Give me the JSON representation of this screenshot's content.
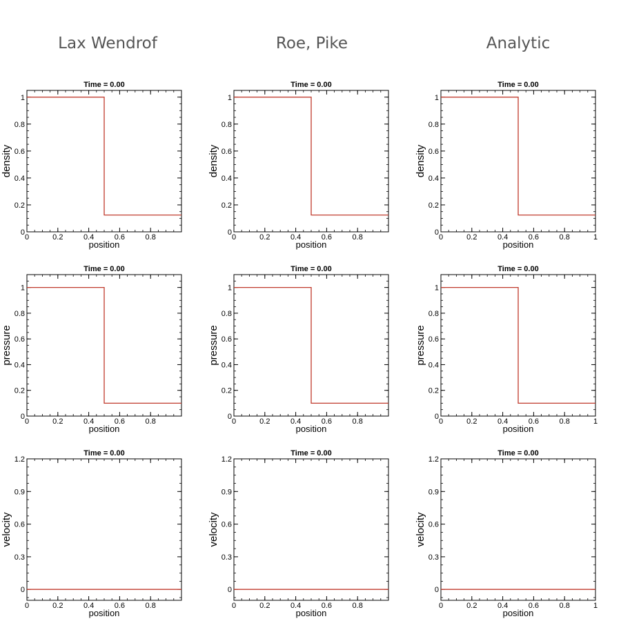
{
  "columns": [
    {
      "title": "Lax Wendrof"
    },
    {
      "title": "Roe, Pike"
    },
    {
      "title": "Analytic"
    }
  ],
  "colors": {
    "line": "#c0392b",
    "axis": "#000000",
    "column_title": "#555555"
  },
  "chart_data": [
    {
      "type": "line",
      "column": 0,
      "row": 0,
      "title": "Time = 0.00",
      "xlabel": "position",
      "ylabel": "density",
      "xlim": [
        0,
        1
      ],
      "ylim": [
        0,
        1.05
      ],
      "xticks": [
        0,
        0.2,
        0.4,
        0.6,
        0.8
      ],
      "xtick_labels": [
        "0",
        "0.2",
        "0.4",
        "0.6",
        "0.8"
      ],
      "yticks": [
        0,
        0.2,
        0.4,
        0.6,
        0.8,
        1
      ],
      "ytick_labels": [
        "0",
        "0.2",
        "0.4",
        "0.6",
        "0.8",
        "1"
      ],
      "series": [
        {
          "x": [
            0,
            0.5,
            0.5,
            1
          ],
          "y": [
            1,
            1,
            0.125,
            0.125
          ]
        }
      ]
    },
    {
      "type": "line",
      "column": 1,
      "row": 0,
      "title": "Time = 0.00",
      "xlabel": "position",
      "ylabel": "density",
      "xlim": [
        0,
        1
      ],
      "ylim": [
        0,
        1.05
      ],
      "xticks": [
        0,
        0.2,
        0.4,
        0.6,
        0.8
      ],
      "xtick_labels": [
        "0",
        "0.2",
        "0.4",
        "0.6",
        "0.8"
      ],
      "yticks": [
        0,
        0.2,
        0.4,
        0.6,
        0.8,
        1
      ],
      "ytick_labels": [
        "0",
        "0.2",
        "0.4",
        "0.6",
        "0.8",
        "1"
      ],
      "series": [
        {
          "x": [
            0,
            0.5,
            0.5,
            1
          ],
          "y": [
            1,
            1,
            0.125,
            0.125
          ]
        }
      ]
    },
    {
      "type": "line",
      "column": 2,
      "row": 0,
      "title": "Time = 0.00",
      "xlabel": "position",
      "ylabel": "density",
      "xlim": [
        0,
        1
      ],
      "ylim": [
        0,
        1.05
      ],
      "xticks": [
        0,
        0.2,
        0.4,
        0.6,
        0.8,
        1
      ],
      "xtick_labels": [
        "0",
        "0.2",
        "0.4",
        "0.6",
        "0.8",
        "1"
      ],
      "yticks": [
        0,
        0.2,
        0.4,
        0.6,
        0.8,
        1
      ],
      "ytick_labels": [
        "0",
        "0.2",
        "0.4",
        "0.6",
        "0.8",
        "1"
      ],
      "series": [
        {
          "x": [
            0,
            0.5,
            0.5,
            1
          ],
          "y": [
            1,
            1,
            0.125,
            0.125
          ]
        }
      ]
    },
    {
      "type": "line",
      "column": 0,
      "row": 1,
      "title": "Time = 0.00",
      "xlabel": "position",
      "ylabel": "pressure",
      "xlim": [
        0,
        1
      ],
      "ylim": [
        0,
        1.1
      ],
      "xticks": [
        0,
        0.2,
        0.4,
        0.6,
        0.8
      ],
      "xtick_labels": [
        "0",
        "0.2",
        "0.4",
        "0.6",
        "0.8"
      ],
      "yticks": [
        0,
        0.2,
        0.4,
        0.6,
        0.8,
        1
      ],
      "ytick_labels": [
        "0",
        "0.2",
        "0.4",
        "0.6",
        "0.8",
        "1"
      ],
      "series": [
        {
          "x": [
            0,
            0.5,
            0.5,
            1
          ],
          "y": [
            1,
            1,
            0.1,
            0.1
          ]
        }
      ]
    },
    {
      "type": "line",
      "column": 1,
      "row": 1,
      "title": "Time = 0.00",
      "xlabel": "position",
      "ylabel": "pressure",
      "xlim": [
        0,
        1
      ],
      "ylim": [
        0,
        1.1
      ],
      "xticks": [
        0,
        0.2,
        0.4,
        0.6,
        0.8
      ],
      "xtick_labels": [
        "0",
        "0.2",
        "0.4",
        "0.6",
        "0.8"
      ],
      "yticks": [
        0,
        0.2,
        0.4,
        0.6,
        0.8,
        1
      ],
      "ytick_labels": [
        "0",
        "0.2",
        "0.4",
        "0.6",
        "0.8",
        "1"
      ],
      "series": [
        {
          "x": [
            0,
            0.5,
            0.5,
            1
          ],
          "y": [
            1,
            1,
            0.1,
            0.1
          ]
        }
      ]
    },
    {
      "type": "line",
      "column": 2,
      "row": 1,
      "title": "Time = 0.00",
      "xlabel": "position",
      "ylabel": "pressure",
      "xlim": [
        0,
        1
      ],
      "ylim": [
        0,
        1.1
      ],
      "xticks": [
        0,
        0.2,
        0.4,
        0.6,
        0.8,
        1
      ],
      "xtick_labels": [
        "0",
        "0.2",
        "0.4",
        "0.6",
        "0.8",
        "1"
      ],
      "yticks": [
        0,
        0.2,
        0.4,
        0.6,
        0.8,
        1
      ],
      "ytick_labels": [
        "0",
        "0.2",
        "0.4",
        "0.6",
        "0.8",
        "1"
      ],
      "series": [
        {
          "x": [
            0,
            0.5,
            0.5,
            1
          ],
          "y": [
            1,
            1,
            0.1,
            0.1
          ]
        }
      ]
    },
    {
      "type": "line",
      "column": 0,
      "row": 2,
      "title": "Time = 0.00",
      "xlabel": "position",
      "ylabel": "velocity",
      "xlim": [
        0,
        1
      ],
      "ylim": [
        -0.1,
        1.2
      ],
      "xticks": [
        0,
        0.2,
        0.4,
        0.6,
        0.8
      ],
      "xtick_labels": [
        "0",
        "0.2",
        "0.4",
        "0.6",
        "0.8"
      ],
      "yticks": [
        0,
        0.3,
        0.6,
        0.9,
        1.2
      ],
      "ytick_labels": [
        "0",
        "0.3",
        "0.6",
        "0.9",
        "1.2"
      ],
      "series": [
        {
          "x": [
            0,
            1
          ],
          "y": [
            0,
            0
          ]
        }
      ]
    },
    {
      "type": "line",
      "column": 1,
      "row": 2,
      "title": "Time = 0.00",
      "xlabel": "position",
      "ylabel": "velocity",
      "xlim": [
        0,
        1
      ],
      "ylim": [
        -0.1,
        1.2
      ],
      "xticks": [
        0,
        0.2,
        0.4,
        0.6,
        0.8
      ],
      "xtick_labels": [
        "0",
        "0.2",
        "0.4",
        "0.6",
        "0.8"
      ],
      "yticks": [
        0,
        0.3,
        0.6,
        0.9,
        1.2
      ],
      "ytick_labels": [
        "0",
        "0.3",
        "0.6",
        "0.9",
        "1.2"
      ],
      "series": [
        {
          "x": [
            0,
            1
          ],
          "y": [
            0,
            0
          ]
        }
      ]
    },
    {
      "type": "line",
      "column": 2,
      "row": 2,
      "title": "Time = 0.00",
      "xlabel": "position",
      "ylabel": "velocity",
      "xlim": [
        0,
        1
      ],
      "ylim": [
        -0.1,
        1.2
      ],
      "xticks": [
        0,
        0.2,
        0.4,
        0.6,
        0.8,
        1
      ],
      "xtick_labels": [
        "0",
        "0.2",
        "0.4",
        "0.6",
        "0.8",
        "1"
      ],
      "yticks": [
        0,
        0.3,
        0.6,
        0.9,
        1.2
      ],
      "ytick_labels": [
        "0",
        "0.3",
        "0.6",
        "0.9",
        "1.2"
      ],
      "series": [
        {
          "x": [
            0,
            1
          ],
          "y": [
            0,
            0
          ]
        }
      ]
    }
  ]
}
